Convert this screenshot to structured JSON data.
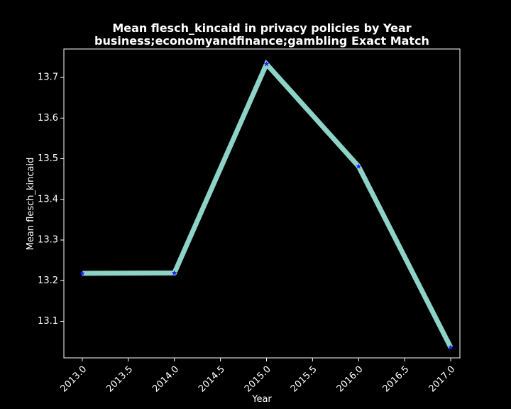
{
  "chart_data": {
    "type": "line",
    "title": "Mean flesch_kincaid in privacy policies by Year",
    "subtitle": "business;economyandfinance;gambling Exact Match",
    "xlabel": "Year",
    "ylabel": "Mean flesch_kincaid",
    "x": [
      2013.0,
      2014.0,
      2015.0,
      2016.0,
      2017.0
    ],
    "y": [
      13.218,
      13.219,
      13.733,
      13.481,
      13.036
    ],
    "xlim": [
      2012.8,
      2017.1
    ],
    "ylim": [
      13.01,
      13.77
    ],
    "xticks": [
      2013.0,
      2013.5,
      2014.0,
      2014.5,
      2015.0,
      2015.5,
      2016.0,
      2016.5,
      2017.0
    ],
    "xtick_labels": [
      "2013.0",
      "2013.5",
      "2014.0",
      "2014.5",
      "2015.0",
      "2015.5",
      "2016.0",
      "2016.5",
      "2017.0"
    ],
    "yticks": [
      13.1,
      13.2,
      13.3,
      13.4,
      13.5,
      13.6,
      13.7
    ],
    "ytick_labels": [
      "13.1",
      "13.2",
      "13.3",
      "13.4",
      "13.5",
      "13.6",
      "13.7"
    ],
    "grid": false,
    "legend": "none",
    "background_color": "#000000",
    "axes_color": "#ffffff",
    "line_color": "#8dd3c7",
    "marker_color": "#1f1fff",
    "marker": "star"
  }
}
